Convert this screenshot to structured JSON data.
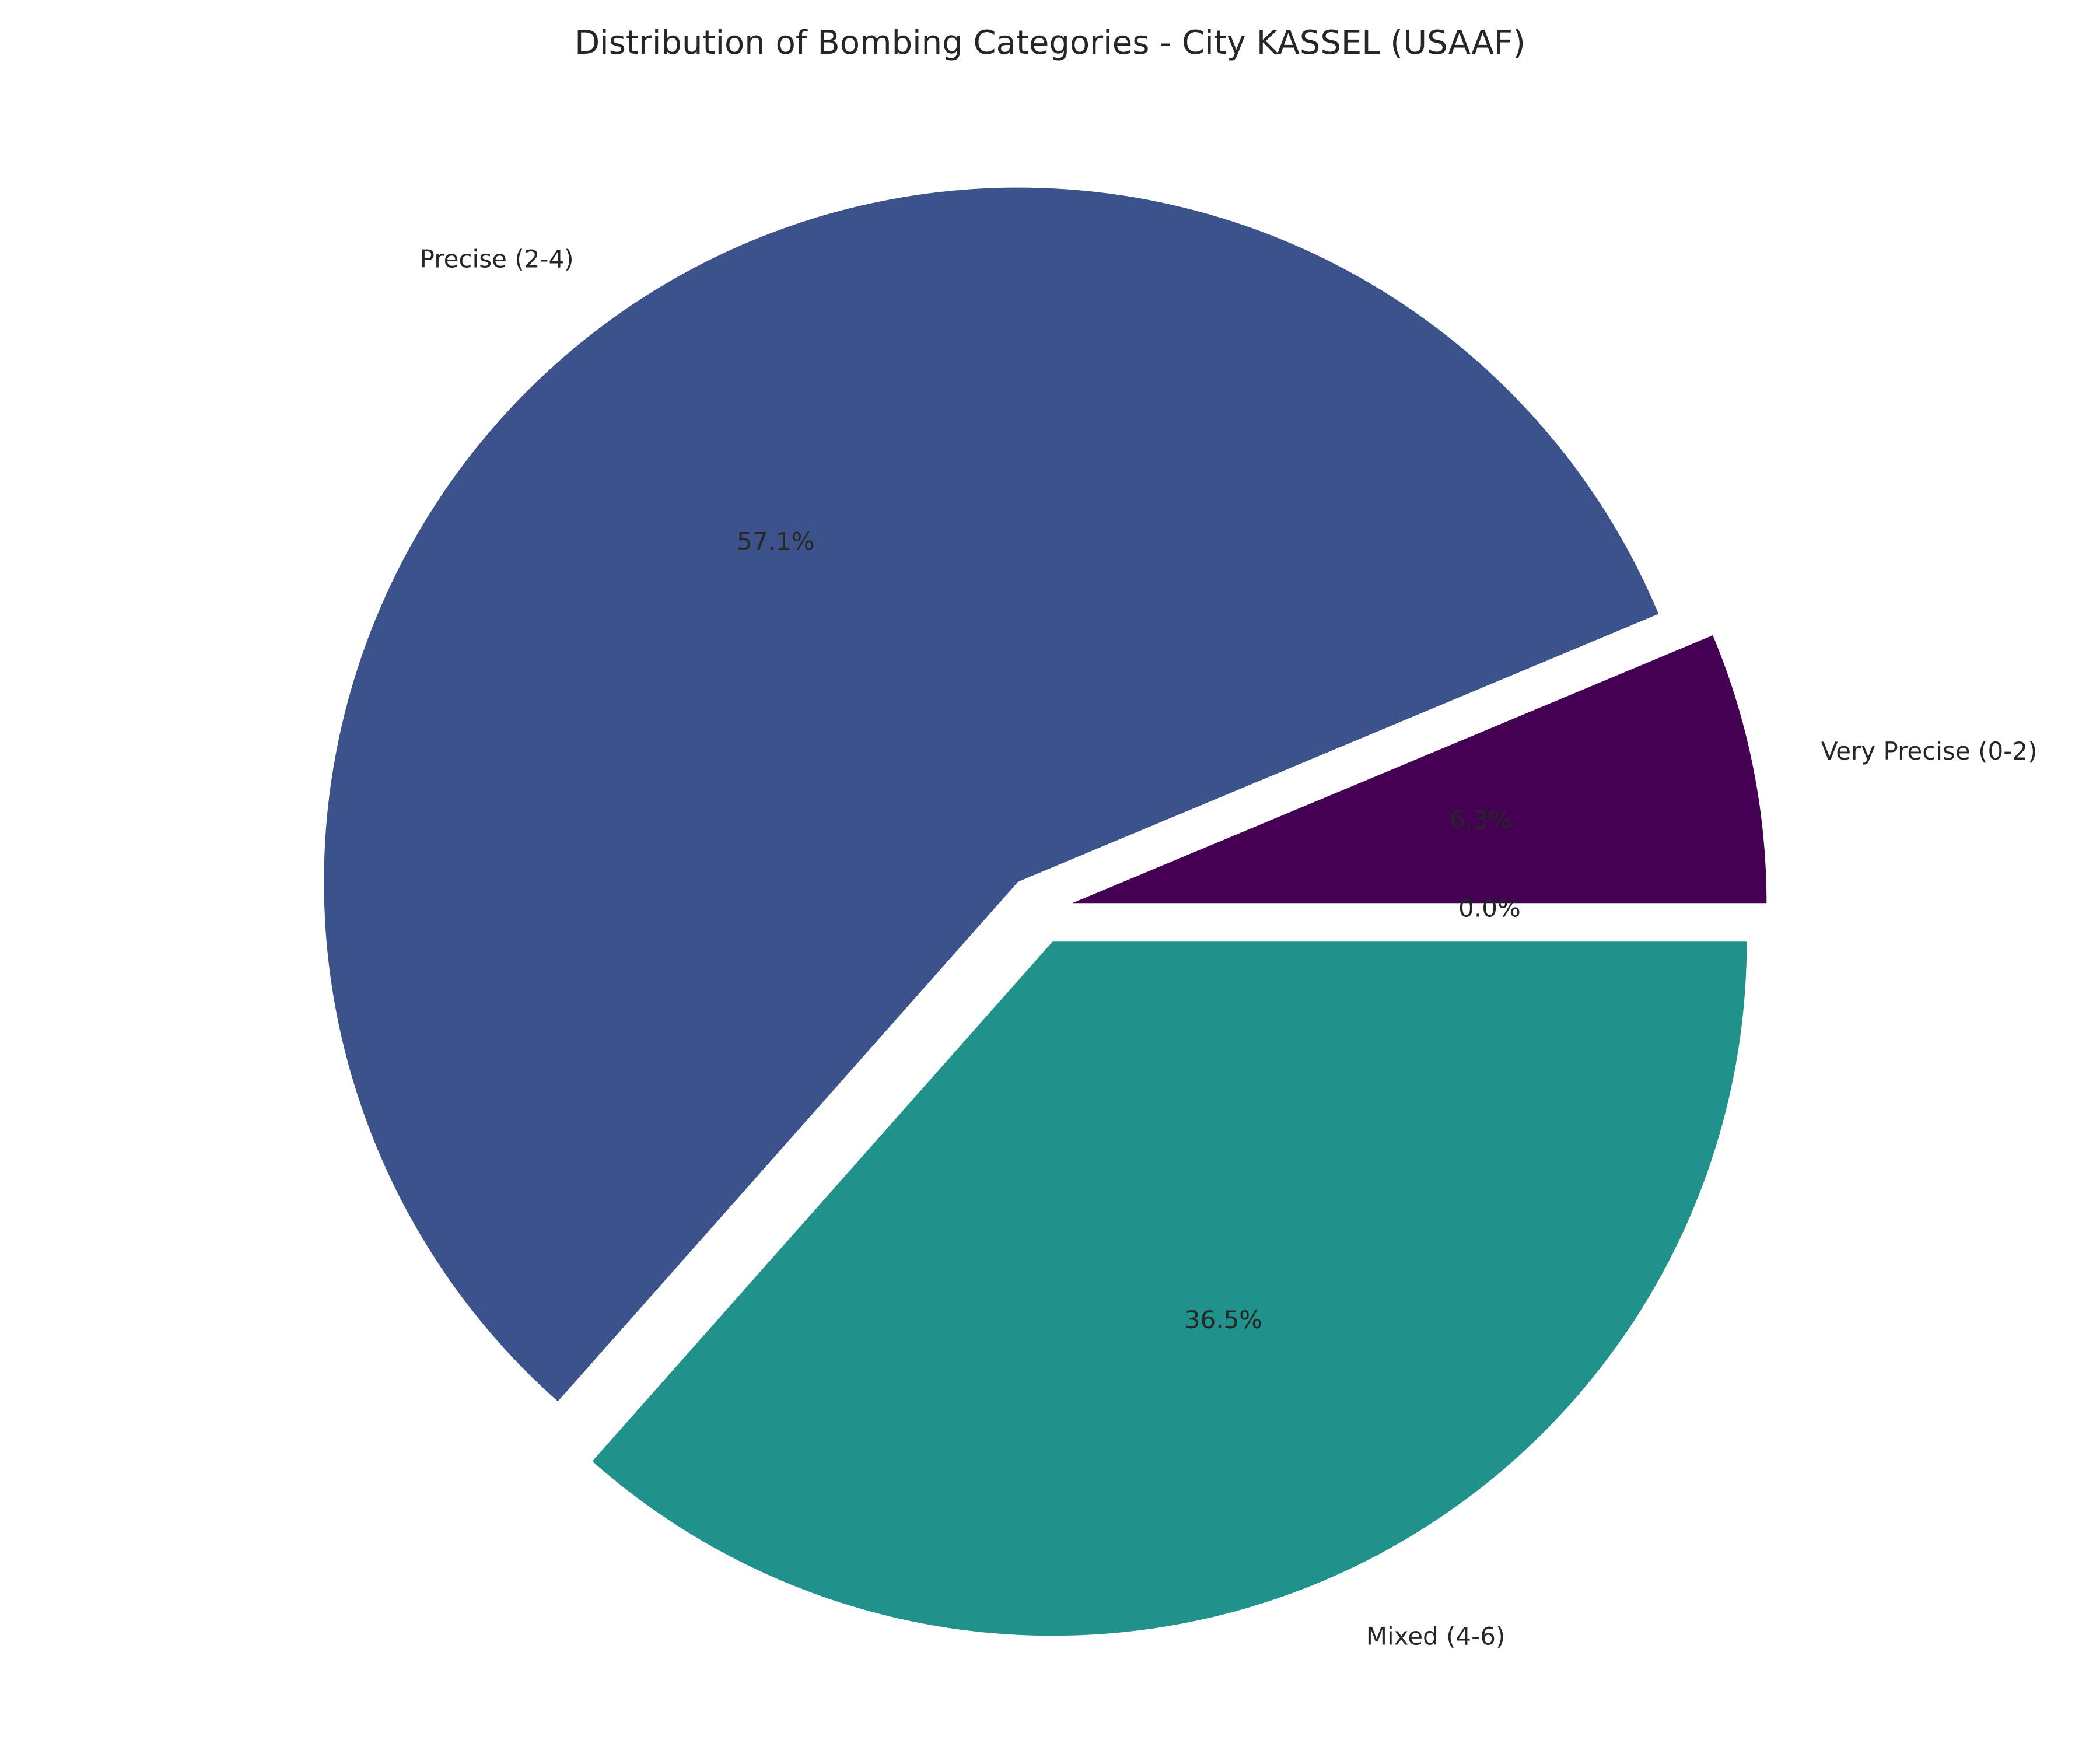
{
  "chart_data": {
    "type": "pie",
    "title": "Distribution of Bombing Categories - City KASSEL (USAAF)",
    "slices": [
      {
        "label": "Very Precise (0-2)",
        "pct_label": "6.3%",
        "value": 6.3,
        "color": "#440154"
      },
      {
        "label": "Precise (2-4)",
        "pct_label": "57.1%",
        "value": 57.1,
        "color": "#3b528b"
      },
      {
        "label": "Mixed (4-6)",
        "pct_label": "36.5%",
        "value": 36.5,
        "color": "#21918c"
      },
      {
        "label": "",
        "pct_label": "0.0%",
        "value": 0.0,
        "color": "#5ec962"
      }
    ],
    "start_angle_deg": 0,
    "direction": "counterclockwise",
    "exploded": true
  }
}
